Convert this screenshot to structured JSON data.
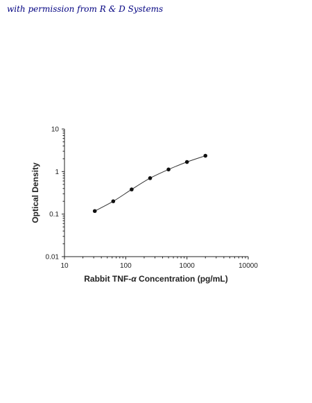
{
  "credit_text": "with permission from R & D Systems",
  "chart_data": {
    "type": "scatter",
    "title": "",
    "xlabel_prefix": "Rabbit TNF-",
    "xlabel_greek": "α",
    "xlabel_suffix": " Concentration (pg/mL)",
    "ylabel": "Optical Density",
    "xscale": "log",
    "yscale": "log",
    "xlim": [
      10,
      10000
    ],
    "ylim": [
      0.01,
      10
    ],
    "xticks": [
      10,
      100,
      1000,
      10000
    ],
    "xtick_labels": [
      "10",
      "100",
      "1000",
      "10000"
    ],
    "yticks": [
      0.01,
      0.1,
      1,
      10
    ],
    "ytick_labels": [
      "0.01",
      "0.1",
      "1",
      "10"
    ],
    "grid": false,
    "series": [
      {
        "x": [
          31.25,
          62.5,
          125,
          250,
          500,
          1000,
          2000
        ],
        "y": [
          0.118,
          0.2,
          0.38,
          0.7,
          1.12,
          1.68,
          2.35
        ],
        "fit_line": true
      }
    ],
    "colors": {
      "points": "#111111",
      "line": "#333333",
      "axis": "#222222"
    }
  }
}
